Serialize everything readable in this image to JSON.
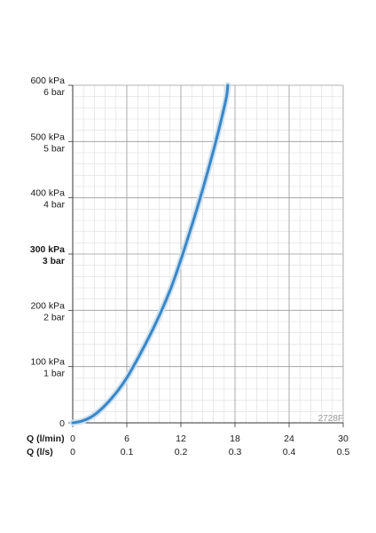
{
  "chart_data": {
    "type": "line",
    "code": "2728F",
    "y_ticks": [
      {
        "value": 0,
        "kpa": "0",
        "bar": "",
        "bold": false
      },
      {
        "value": 100,
        "kpa": "100 kPa",
        "bar": "1 bar",
        "bold": false
      },
      {
        "value": 200,
        "kpa": "200 kPa",
        "bar": "2 bar",
        "bold": false
      },
      {
        "value": 300,
        "kpa": "300 kPa",
        "bar": "3 bar",
        "bold": true
      },
      {
        "value": 400,
        "kpa": "400 kPa",
        "bar": "4 bar",
        "bold": false
      },
      {
        "value": 500,
        "kpa": "500 kPa",
        "bar": "5 bar",
        "bold": false
      },
      {
        "value": 600,
        "kpa": "600 kPa",
        "bar": "6 bar",
        "bold": false
      }
    ],
    "x_axis_lpm": {
      "label": "Q (l/min)",
      "ticks": [
        "0",
        "6",
        "12",
        "18",
        "24",
        "30"
      ]
    },
    "x_axis_lps": {
      "label": "Q (l/s)",
      "ticks": [
        "0",
        "0.1",
        "0.2",
        "0.3",
        "0.4",
        "0.5"
      ]
    },
    "xlim": [
      0,
      30
    ],
    "ylim": [
      0,
      600
    ],
    "grid": true,
    "series": [
      {
        "color": "#3a87c6",
        "x": [
          0,
          1,
          2,
          3,
          4,
          5,
          6,
          7,
          8,
          9,
          10,
          11,
          12,
          13,
          14,
          15,
          16,
          17,
          17.2
        ],
        "y": [
          0,
          3,
          10,
          22,
          38,
          57,
          80,
          108,
          138,
          170,
          205,
          244,
          290,
          340,
          392,
          448,
          508,
          575,
          600
        ]
      }
    ]
  }
}
